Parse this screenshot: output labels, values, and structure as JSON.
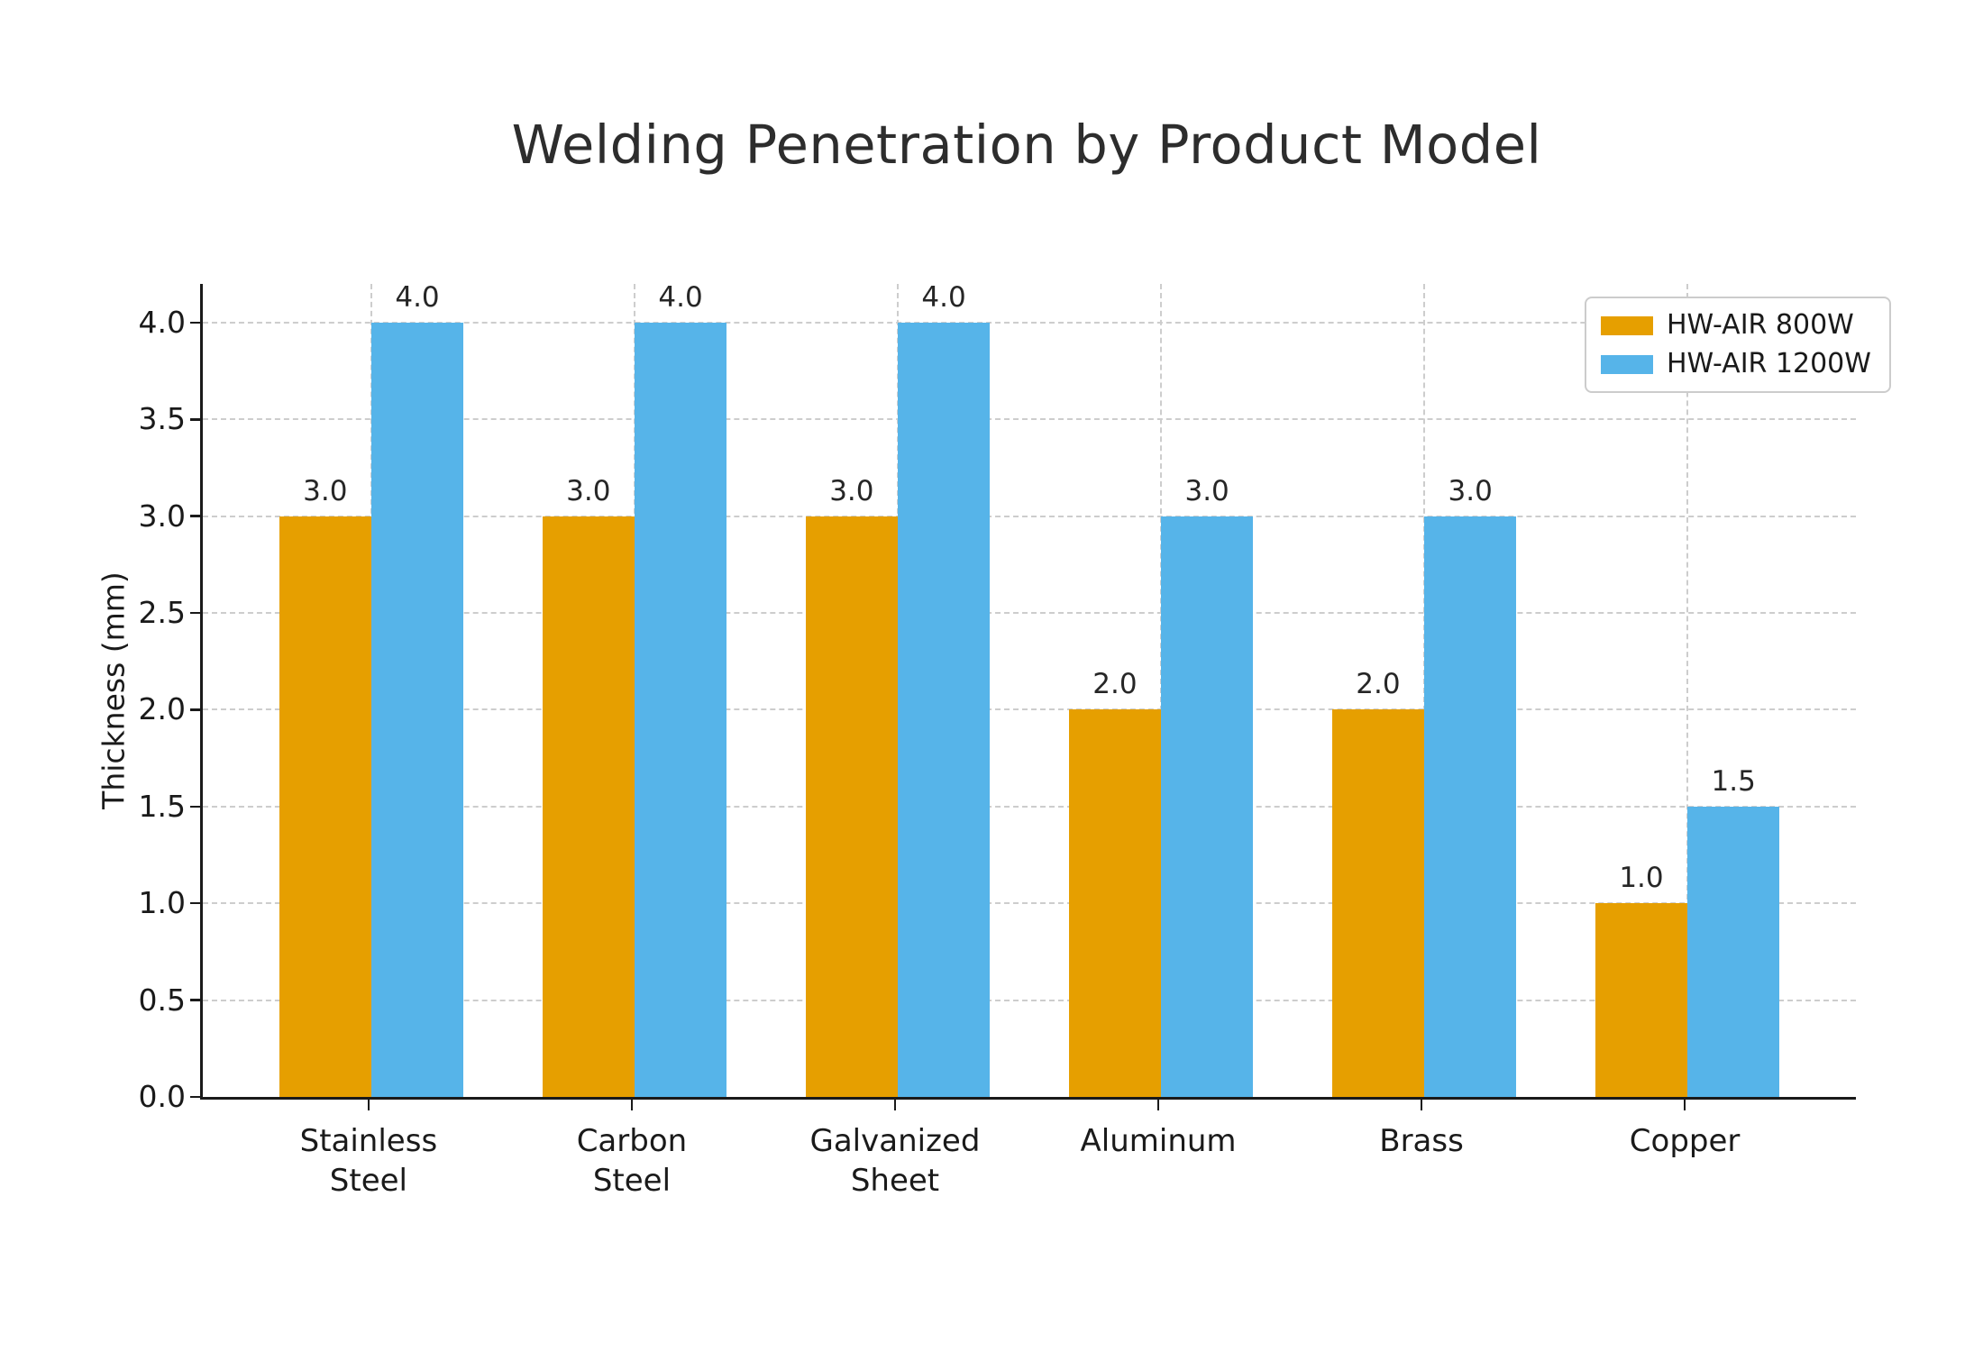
{
  "chart_data": {
    "type": "bar",
    "title": "Welding Penetration by Product Model",
    "ylabel": "Thickness (mm)",
    "xlabel": "",
    "categories": [
      "Stainless\nSteel",
      "Carbon\nSteel",
      "Galvanized\nSheet",
      "Aluminum",
      "Brass",
      "Copper"
    ],
    "series": [
      {
        "name": "HW-AIR 800W",
        "color": "#E69F00",
        "values": [
          3.0,
          3.0,
          3.0,
          2.0,
          2.0,
          1.0
        ]
      },
      {
        "name": "HW-AIR 1200W",
        "color": "#56B4E9",
        "values": [
          4.0,
          4.0,
          4.0,
          3.0,
          3.0,
          1.5
        ]
      }
    ],
    "bar_value_labels": true,
    "value_label_format": "1-decimal",
    "yticks": [
      0.0,
      0.5,
      1.0,
      1.5,
      2.0,
      2.5,
      3.0,
      3.5,
      4.0
    ],
    "ylim": [
      0,
      4.2
    ],
    "grid": {
      "style": "dashed",
      "color": "#cdcdcd",
      "axes": "both"
    },
    "legend": {
      "position": "upper-right"
    }
  }
}
